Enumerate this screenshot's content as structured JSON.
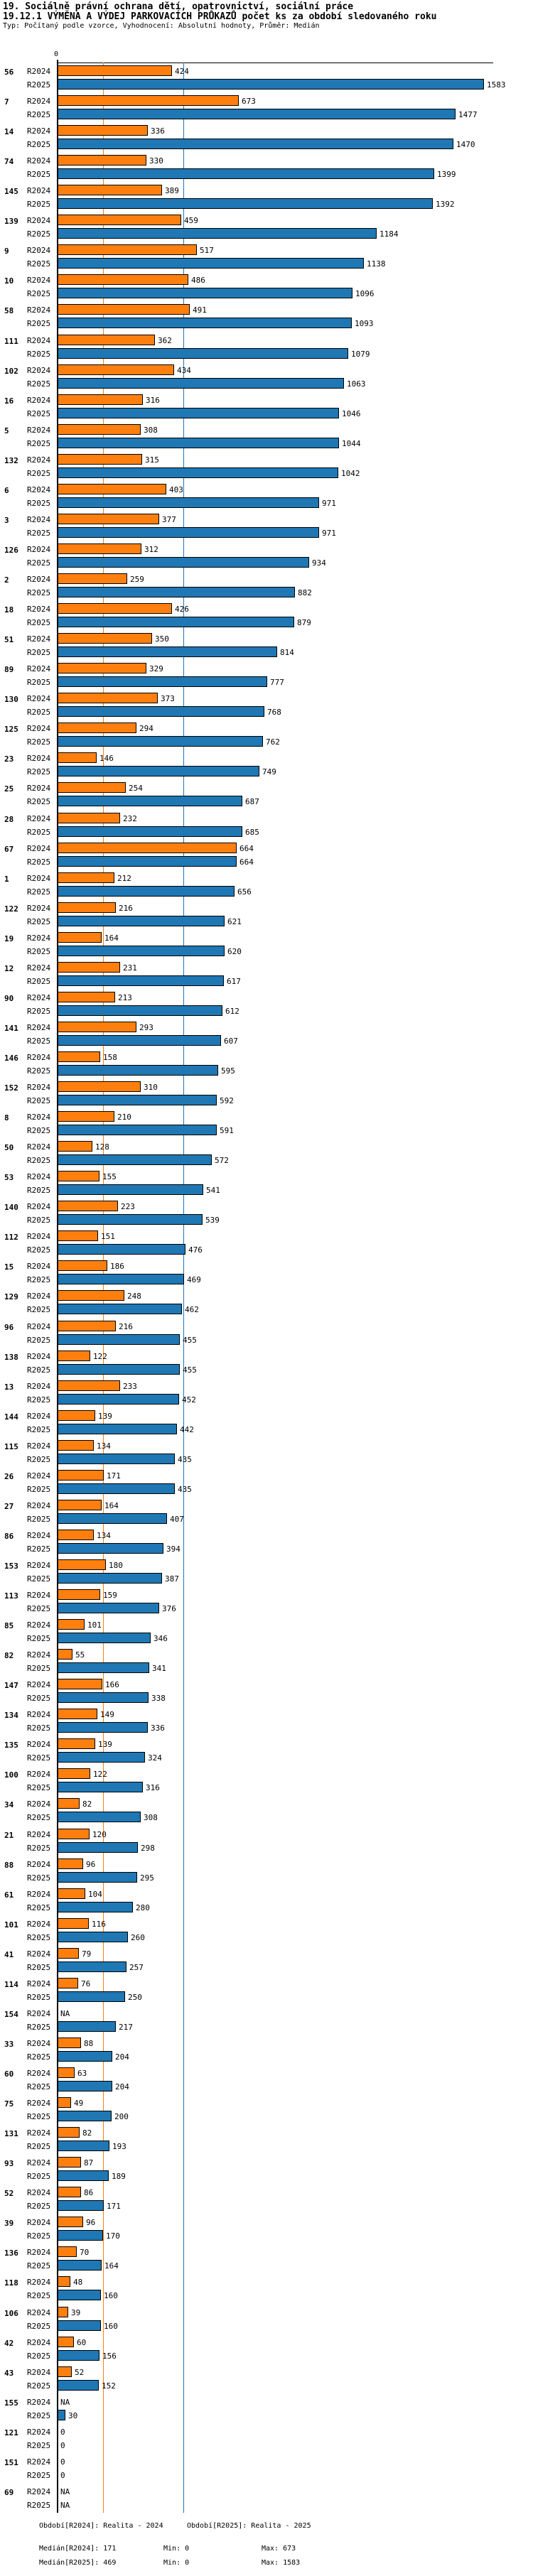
{
  "header": {
    "title": "19. Sociálně právní ochrana dětí, opatrovnictví, sociální práce",
    "subtitle": "19.12.1 VÝMĚNA A VÝDEJ PARKOVACÍCH PRŮKAZŮ počet ks za období sledovaného roku",
    "type_line": "Typ: Počítaný podle vzorce, Vyhodnocení: Absolutní hodnoty, Průměr: Medián"
  },
  "chart_data": {
    "type": "bar",
    "orientation": "horizontal",
    "title": "19.12.1 VÝMĚNA A VÝDEJ PARKOVACÍCH PRŮKAZŮ počet ks za období sledovaného roku",
    "zero_label": "0",
    "xlim": [
      0,
      1583
    ],
    "grid": false,
    "categories": [
      "56",
      "7",
      "14",
      "74",
      "145",
      "139",
      "9",
      "10",
      "58",
      "111",
      "102",
      "16",
      "5",
      "132",
      "6",
      "3",
      "126",
      "2",
      "18",
      "51",
      "89",
      "130",
      "125",
      "23",
      "25",
      "28",
      "67",
      "1",
      "122",
      "19",
      "12",
      "90",
      "141",
      "146",
      "152",
      "8",
      "50",
      "53",
      "140",
      "112",
      "15",
      "129",
      "96",
      "138",
      "13",
      "144",
      "115",
      "26",
      "27",
      "86",
      "153",
      "113",
      "85",
      "82",
      "147",
      "134",
      "135",
      "100",
      "34",
      "21",
      "88",
      "61",
      "101",
      "41",
      "114",
      "154",
      "33",
      "60",
      "75",
      "131",
      "93",
      "52",
      "39",
      "136",
      "118",
      "106",
      "42",
      "43",
      "155",
      "121",
      "151",
      "69"
    ],
    "series": [
      {
        "name": "R2024",
        "color": "#ff7f0e",
        "median": 171,
        "min": 0,
        "max": 673,
        "values": [
          424,
          673,
          336,
          330,
          389,
          459,
          517,
          486,
          491,
          362,
          434,
          316,
          308,
          315,
          403,
          377,
          312,
          259,
          426,
          350,
          329,
          373,
          294,
          146,
          254,
          232,
          664,
          212,
          216,
          164,
          231,
          213,
          293,
          158,
          310,
          210,
          128,
          155,
          223,
          151,
          186,
          248,
          216,
          122,
          233,
          139,
          134,
          171,
          164,
          134,
          180,
          159,
          101,
          55,
          166,
          149,
          139,
          122,
          82,
          120,
          96,
          104,
          116,
          79,
          76,
          "NA",
          88,
          63,
          49,
          82,
          87,
          86,
          96,
          70,
          48,
          39,
          60,
          52,
          "NA",
          0,
          0,
          "NA"
        ]
      },
      {
        "name": "R2025",
        "color": "#1f77b4",
        "median": 469,
        "min": 0,
        "max": 1583,
        "values": [
          1583,
          1477,
          1470,
          1399,
          1392,
          1184,
          1138,
          1096,
          1093,
          1079,
          1063,
          1046,
          1044,
          1042,
          971,
          971,
          934,
          882,
          879,
          814,
          777,
          768,
          762,
          749,
          687,
          685,
          664,
          656,
          621,
          620,
          617,
          612,
          607,
          595,
          592,
          591,
          572,
          541,
          539,
          476,
          469,
          462,
          455,
          455,
          452,
          442,
          435,
          435,
          407,
          394,
          387,
          376,
          346,
          341,
          338,
          336,
          324,
          316,
          308,
          298,
          295,
          280,
          260,
          257,
          250,
          217,
          204,
          204,
          200,
          193,
          189,
          171,
          170,
          164,
          160,
          160,
          156,
          152,
          30,
          0,
          0,
          "NA"
        ]
      }
    ]
  },
  "footer": {
    "period_r2024": "Období[R2024]: Realita - 2024",
    "period_r2025": "Období[R2025]: Realita - 2025",
    "median_r2024": "Medián[R2024]: 171",
    "min_r2024": "Min: 0",
    "max_r2024": "Max: 673",
    "median_r2025": "Medián[R2025]: 469",
    "min_r2025": "Min: 0",
    "max_r2025": "Max: 1583"
  }
}
